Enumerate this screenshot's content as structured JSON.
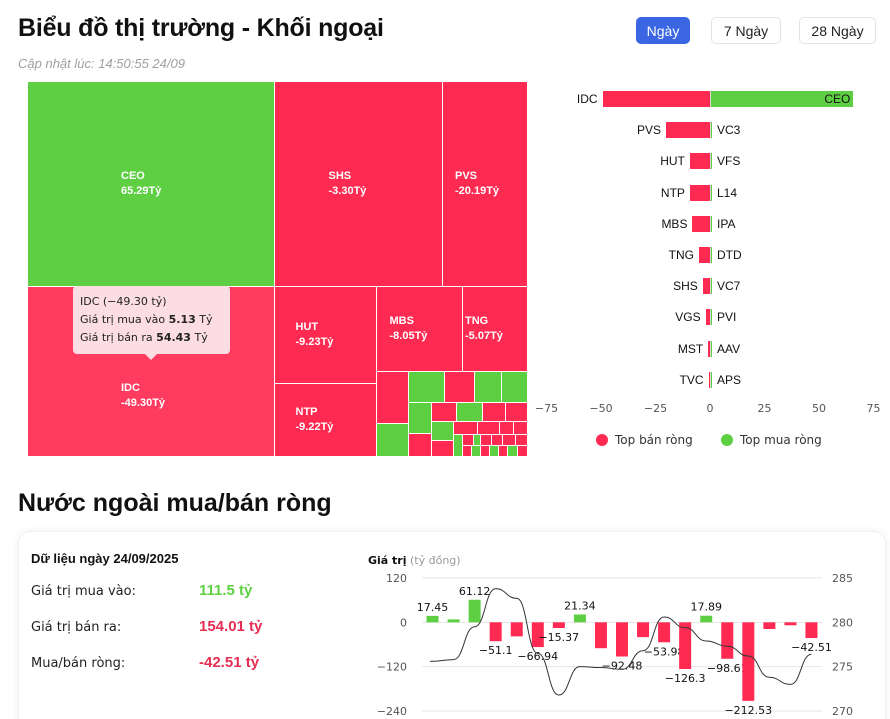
{
  "header": {
    "title": "Biểu đồ thị trường - Khối ngoại",
    "updated": "Cập nhật lúc: 14:50:55 24/09"
  },
  "periods": [
    {
      "label": "Ngày",
      "active": true
    },
    {
      "label": "7 Ngày",
      "active": false
    },
    {
      "label": "28 Ngày",
      "active": false
    }
  ],
  "treemap": {
    "tiles": [
      {
        "ticker": "CEO",
        "value": "65.29Tỷ"
      },
      {
        "ticker": "SHS",
        "value": "-3.30Tỷ"
      },
      {
        "ticker": "PVS",
        "value": "-20.19Tỷ"
      },
      {
        "ticker": "IDC",
        "value": "-49.30Tỷ"
      },
      {
        "ticker": "HUT",
        "value": "-9.23Tỷ"
      },
      {
        "ticker": "MBS",
        "value": "-8.05Tỷ"
      },
      {
        "ticker": "TNG",
        "value": "-5.07Tỷ"
      },
      {
        "ticker": "NTP",
        "value": "-9.22Tỷ"
      }
    ],
    "tooltip": {
      "title": "IDC (−49.30 tỷ)",
      "buy_label": "Giá trị mua vào",
      "buy_value": "5.13",
      "sell_label": "Giá trị bán ra",
      "sell_value": "54.43",
      "unit": "Tỷ"
    }
  },
  "top_chart": {
    "rows": [
      {
        "sell": "IDC",
        "sell_value": -49.3,
        "buy": "CEO",
        "buy_value": 65.29
      },
      {
        "sell": "PVS",
        "sell_value": -20.19,
        "buy": "VC3",
        "buy_value": 0.3
      },
      {
        "sell": "HUT",
        "sell_value": -9.23,
        "buy": "VFS",
        "buy_value": 0.1
      },
      {
        "sell": "NTP",
        "sell_value": -9.22,
        "buy": "L14",
        "buy_value": 0.1
      },
      {
        "sell": "MBS",
        "sell_value": -8.05,
        "buy": "IPA",
        "buy_value": 0.05
      },
      {
        "sell": "TNG",
        "sell_value": -5.07,
        "buy": "DTD",
        "buy_value": 0.05
      },
      {
        "sell": "SHS",
        "sell_value": -3.3,
        "buy": "VC7",
        "buy_value": 0.03
      },
      {
        "sell": "VGS",
        "sell_value": -2.0,
        "buy": "PVI",
        "buy_value": 0.02
      },
      {
        "sell": "MST",
        "sell_value": -0.8,
        "buy": "AAV",
        "buy_value": 0.01
      },
      {
        "sell": "TVC",
        "sell_value": -0.3,
        "buy": "APS",
        "buy_value": 0.01
      }
    ],
    "x_ticks": [
      "−75",
      "−50",
      "−25",
      "0",
      "25",
      "50",
      "75"
    ],
    "legend": [
      {
        "label": "Top bán ròng",
        "color": "#ff2a51"
      },
      {
        "label": "Top mua ròng",
        "color": "#5ecf43"
      }
    ]
  },
  "section2": {
    "title": "Nước ngoài mua/bán ròng",
    "date_label": "Dữ liệu ngày 24/09/2025",
    "stats": [
      {
        "label": "Giá trị mua vào:",
        "value": "111.5 tỷ",
        "tone": "green"
      },
      {
        "label": "Giá trị bán ra:",
        "value": "154.01 tỷ",
        "tone": "red"
      },
      {
        "label": "Mua/bán ròng:",
        "value": "-42.51 tỷ",
        "tone": "red"
      }
    ],
    "axis_title_bold": "Giá trị",
    "axis_title_unit": "(tỷ đồng)"
  },
  "colors": {
    "positive": "#5ecf43",
    "negative": "#ff2a51",
    "accent": "#3b66e3"
  },
  "chart_data": [
    {
      "type": "treemap",
      "title": "Biểu đồ thị trường - Khối ngoại",
      "labels": [
        "CEO",
        "IDC",
        "PVS",
        "HUT",
        "NTP",
        "MBS",
        "TNG",
        "SHS"
      ],
      "values": [
        65.29,
        -49.3,
        -20.19,
        -9.23,
        -9.22,
        -8.05,
        -5.07,
        -3.3
      ],
      "unit": "Tỷ"
    },
    {
      "type": "bar",
      "orientation": "horizontal",
      "series": [
        {
          "name": "Top bán ròng",
          "categories": [
            "IDC",
            "PVS",
            "HUT",
            "NTP",
            "MBS",
            "TNG",
            "SHS",
            "VGS",
            "MST",
            "TVC"
          ],
          "values": [
            -49.3,
            -20.19,
            -9.23,
            -9.22,
            -8.05,
            -5.07,
            -3.3,
            -2.0,
            -0.8,
            -0.3
          ]
        },
        {
          "name": "Top mua ròng",
          "categories": [
            "CEO",
            "VC3",
            "VFS",
            "L14",
            "IPA",
            "DTD",
            "VC7",
            "PVI",
            "AAV",
            "APS"
          ],
          "values": [
            65.29,
            0.3,
            0.1,
            0.1,
            0.05,
            0.05,
            0.03,
            0.02,
            0.01,
            0.01
          ]
        }
      ],
      "xlim": [
        -75,
        75
      ],
      "x_ticks": [
        -75,
        -50,
        -25,
        0,
        25,
        50,
        75
      ],
      "legend_position": "bottom"
    },
    {
      "type": "bar",
      "title": "Nước ngoài mua/bán ròng",
      "ylabel": "Giá trị (tỷ đồng)",
      "values": [
        17.45,
        8,
        61.12,
        -51.1,
        -38,
        -66.94,
        -15.37,
        21.34,
        -70,
        -92.48,
        -40,
        -53.98,
        -126.3,
        17.89,
        -98.61,
        -212.53,
        -18,
        -8,
        -42.51
      ],
      "labeled_values": [
        17.45,
        61.12,
        -51.1,
        -66.94,
        -15.37,
        21.34,
        -92.48,
        -53.98,
        -126.3,
        17.89,
        -98.61,
        -212.53,
        -42.51
      ],
      "ylim": [
        -240,
        120
      ],
      "y_ticks": [
        120,
        0,
        -120,
        -240
      ],
      "secondary_axis": {
        "type": "line",
        "ylim": [
          270,
          285
        ],
        "y_ticks": [
          285,
          280,
          275,
          270
        ],
        "values": [
          275.6,
          275.8,
          279.5,
          283.8,
          282.7,
          276.5,
          271.8,
          275.0,
          274.9,
          274.7,
          276.8,
          280.6,
          279.4,
          277.9,
          277.3,
          276.2,
          273.8,
          273.0,
          276.4
        ]
      },
      "grid": true
    }
  ]
}
